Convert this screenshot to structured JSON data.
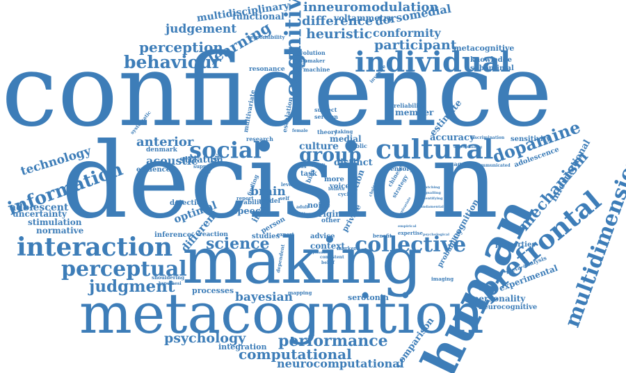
{
  "colors": {
    "word": "#3d7db8",
    "background": "#ffffff"
  },
  "words": {
    "confidence": "confidence",
    "decision": "decision",
    "making": "making",
    "metacognition": "metacognition",
    "human": "human",
    "prefrontal": "prefrontal",
    "individual": "individual",
    "social": "social",
    "cultural": "cultural",
    "interaction": "interaction",
    "collective": "collective",
    "science": "science",
    "perceptual": "perceptual",
    "judgment": "judgment",
    "information": "information",
    "multidimensional": "multidimensional",
    "behaviour": "behaviour",
    "cognitive": "cognitive",
    "group": "group",
    "performance": "performance",
    "computational": "computational",
    "neurocomputational": "neurocomputational",
    "psychology": "psychology",
    "bayesian": "bayesian",
    "technology": "technology",
    "adolescent": "adolescent",
    "dopamine": "dopamine",
    "mechanism": "mechanism",
    "perception": "perception",
    "judgement": "judgement",
    "learning": "learning",
    "heuristic": "heuristic",
    "difference": "difference",
    "inneuromodulation": "inneuromodulation",
    "multidisciplinary": "multidisciplinary",
    "conformity": "conformity",
    "participant": "participant",
    "dorsomedial": "dorsomedial",
    "functional": "functional",
    "voltammetry": "voltammetry",
    "culture": "culture",
    "anterior": "anterior",
    "acoustic": "acoustic",
    "striatum": "striatum",
    "brain": "brain",
    "optimal": "optimal",
    "different": "different",
    "distinct": "distinct",
    "accuracy": "accuracy",
    "sensitivity": "sensitivity",
    "adolescence": "adolescence",
    "informational": "informational",
    "experimental": "experimental",
    "personality": "personality",
    "neurocognitive": "neurocognitive",
    "comparison": "comparison",
    "serotonin": "serotonin",
    "processes": "processes",
    "integration": "integration",
    "uncertainty": "uncertainty",
    "stimulation": "stimulation",
    "normative": "normative",
    "context": "context",
    "studies": "studies",
    "evidence": "evidence",
    "medial": "medial",
    "metacognitive": "metacognitive",
    "knowledge": "knowledge",
    "suboptimal": "suboptimal",
    "member": "member",
    "estimate": "estimate",
    "reliability": "reliability",
    "cognition": "cognition",
    "probability": "probability",
    "properties": "properties",
    "imaging": "imaging",
    "inference": "inference",
    "reaction": "reaction",
    "speech": "speech",
    "noise": "noise",
    "origin": "origin",
    "voice": "voice",
    "action": "action",
    "advice": "advice",
    "task": "task",
    "detection": "detection",
    "diversity": "diversity",
    "resonance": "resonance",
    "machine": "machine",
    "evolution": "evolution",
    "biomaker": "biomaker",
    "invasive": "invasive",
    "subject": "subject",
    "seroton": "seroton",
    "escalation": "escalation",
    "multivariate": "multivariate",
    "research": "research",
    "model": "model",
    "ability": "ability",
    "insula": "insula",
    "person": "person",
    "expert": "expert",
    "mapping": "mapping",
    "denmark": "denmark",
    "support": "support",
    "magnetic": "magnetic",
    "sensory": "sensory",
    "chinese": "chinese",
    "strategy": "strategy",
    "benefit": "benefit",
    "expertise": "expertise",
    "marker": "marker",
    "private": "private",
    "public": "public",
    "level": "level",
    "more": "more",
    "other": "other",
    "finding": "finding",
    "systematic": "systematic",
    "responsibility": "responsibility",
    "shouldering": "shouldering",
    "hypothesi": "hypothesi",
    "meta-analysis": "meta-analysis",
    "theory": "theory",
    "taking": "taking",
    "female": "female",
    "adult": "adult",
    "report": "report",
    "self": "self",
    "china": "china",
    "dependent": "dependent",
    "cyclic": "cyclic",
    "bias": "bias",
    "better": "better",
    "signalling": "signalling",
    "discrimination": "discrimination",
    "communicated": "communicated",
    "psychological": "psychological",
    "understanding": "understanding",
    "believe": "believe",
    "consistent": "consistent",
    "optionality": "optionality",
    "choice": "choice",
    "alignment": "alignment",
    "belief": "belief",
    "cross": "cross",
    "result": "result",
    "identifying": "identifying",
    "matching": "matching",
    "empirical": "empirical",
    "univariate": "univariate",
    "underlying": "underlying",
    "fundamental": "fundamental"
  }
}
